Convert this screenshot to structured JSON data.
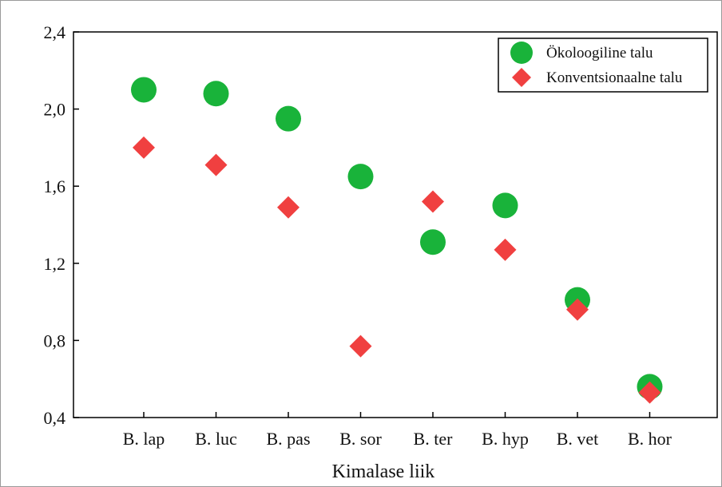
{
  "chart_data": {
    "type": "scatter",
    "categories": [
      "B. lap",
      "B. luc",
      "B. pas",
      "B. sor",
      "B. ter",
      "B. hyp",
      "B. vet",
      "B. hor"
    ],
    "series": [
      {
        "name": "Ökoloogiline talu",
        "marker": "circle",
        "color": "#19b33a",
        "values": [
          2.1,
          2.08,
          1.95,
          1.65,
          1.31,
          1.5,
          1.01,
          0.56
        ]
      },
      {
        "name": "Konventsionaalne talu",
        "marker": "diamond",
        "color": "#f04040",
        "values": [
          1.8,
          1.71,
          1.49,
          0.77,
          1.52,
          1.27,
          0.96,
          0.53
        ]
      }
    ],
    "xlabel": "Kimalase liik",
    "ylabel": "",
    "ylim": [
      0.4,
      2.4
    ],
    "yticks": [
      0.4,
      0.8,
      1.2,
      1.6,
      2.0,
      2.4
    ],
    "ytick_labels": [
      "0,4",
      "0,8",
      "1,2",
      "1,6",
      "2,0",
      "2,4"
    ],
    "legend_position": "top-right",
    "grid": false
  }
}
